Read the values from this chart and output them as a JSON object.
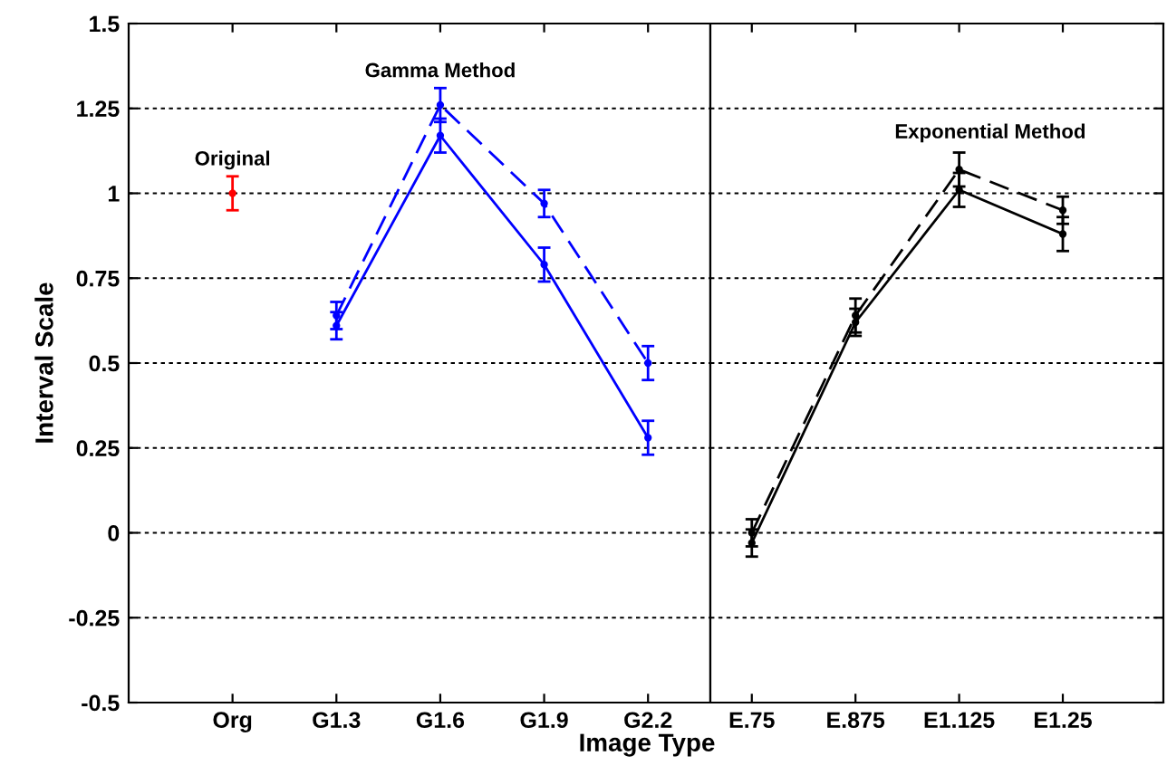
{
  "chart_data": [
    {
      "type": "line",
      "xlabel": "Image Type",
      "ylabel": "Interval Scale",
      "categories": [
        "Org",
        "G1.3",
        "G1.6",
        "G1.9",
        "G2.2"
      ],
      "series": [
        {
          "color": "#ff0000",
          "line_style": "solid",
          "values": [
            1.0,
            null,
            null,
            null,
            null
          ],
          "errors": [
            0.05,
            null,
            null,
            null,
            null
          ]
        },
        {
          "color": "#0000ff",
          "line_style": "dashed",
          "values": [
            null,
            0.64,
            1.26,
            0.97,
            0.5
          ],
          "errors": [
            null,
            0.04,
            0.05,
            0.04,
            0.05
          ]
        },
        {
          "color": "#0000ff",
          "line_style": "solid",
          "values": [
            null,
            0.61,
            1.17,
            0.79,
            0.28
          ],
          "errors": [
            null,
            0.04,
            0.05,
            0.05,
            0.05
          ]
        }
      ],
      "ylim": [
        -0.5,
        1.5
      ],
      "yticks": [
        -0.5,
        -0.25,
        0,
        0.25,
        0.5,
        0.75,
        1,
        1.25,
        1.5
      ],
      "grid": "y",
      "marker": "circle",
      "annotations": [
        "Original",
        "Gamma Method"
      ]
    },
    {
      "type": "line",
      "categories": [
        "E.75",
        "E.875",
        "E1.125",
        "E1.25"
      ],
      "series": [
        {
          "color": "#000000",
          "line_style": "dashed",
          "values": [
            0.0,
            0.64,
            1.07,
            0.95
          ],
          "errors": [
            0.04,
            0.05,
            0.05,
            0.04
          ]
        },
        {
          "color": "#000000",
          "line_style": "solid",
          "values": [
            -0.03,
            0.62,
            1.01,
            0.88
          ],
          "errors": [
            0.04,
            0.04,
            0.05,
            0.05
          ]
        }
      ],
      "ylim": [
        -0.5,
        1.5
      ],
      "yticks": [
        -0.5,
        -0.25,
        0,
        0.25,
        0.5,
        0.75,
        1,
        1.25,
        1.5
      ],
      "tick_labels": "x",
      "grid": "y",
      "marker": "circle",
      "annotations": [
        "Exponential Method"
      ]
    }
  ]
}
